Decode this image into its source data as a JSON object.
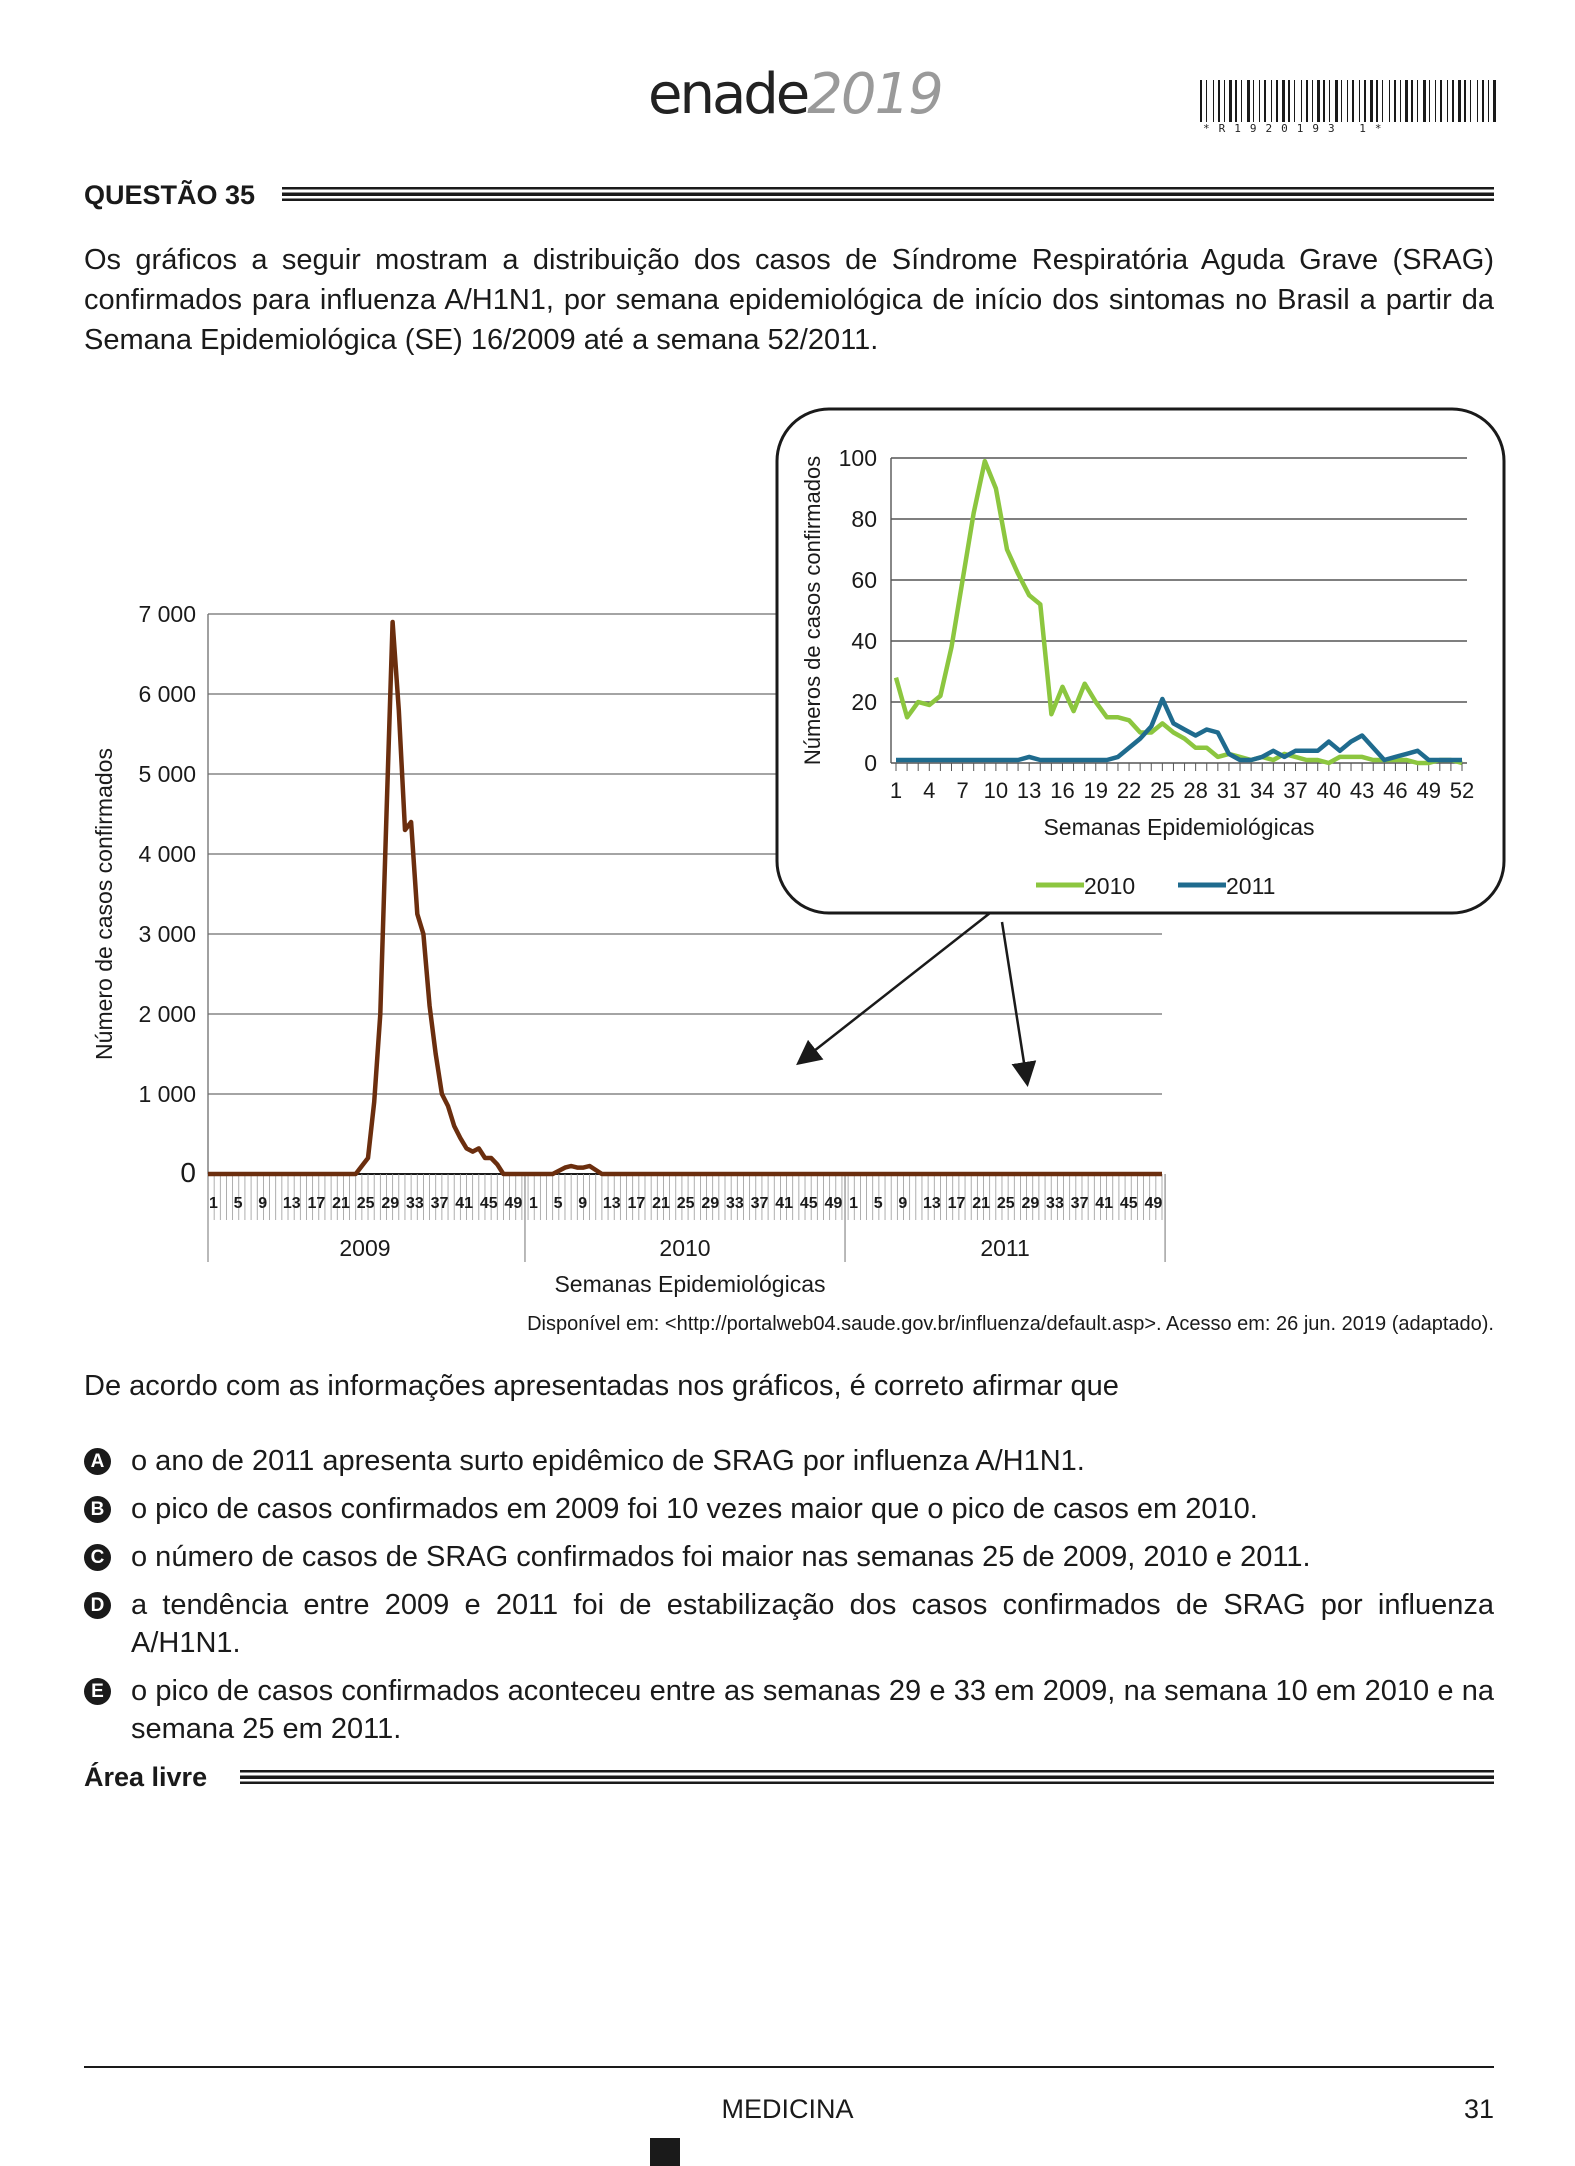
{
  "header": {
    "logo_word": "enade",
    "logo_year": "2019",
    "barcode_text": "*R1920193 1*"
  },
  "question": {
    "title": "QUESTÃO 35",
    "intro": "Os gráficos a seguir mostram a distribuição dos casos de Síndrome Respiratória Aguda Grave (SRAG) confirmados para influenza A/H1N1, por semana epidemiológica de início dos sintomas no Brasil a partir da Semana Epidemiológica (SE) 16/2009 até a semana 52/2011.",
    "source": "Disponível em: <http://portalweb04.saude.gov.br/influenza/default.asp>. Acesso em: 26 jun. 2019 (adaptado).",
    "prompt": "De acordo com as informações apresentadas nos gráficos, é correto afirmar que",
    "options": [
      {
        "letter": "A",
        "text": "o ano de 2011 apresenta surto epidêmico de SRAG por influenza A/H1N1."
      },
      {
        "letter": "B",
        "text": "o pico de casos confirmados em 2009 foi 10 vezes maior que o pico de casos em 2010."
      },
      {
        "letter": "C",
        "text": "o número de casos de SRAG confirmados foi maior nas semanas 25 de 2009, 2010 e 2011."
      },
      {
        "letter": "D",
        "text": "a tendência entre 2009 e 2011 foi de estabilização dos casos confirmados de SRAG por influenza A/H1N1."
      },
      {
        "letter": "E",
        "text": "o pico de casos confirmados aconteceu entre as semanas 29 e 33 em 2009, na semana 10 em 2010 e na semana 25 em 2011."
      }
    ],
    "free_area_label": "Área livre"
  },
  "footer": {
    "subject": "MEDICINA",
    "page": "31"
  },
  "chart_data": [
    {
      "type": "line",
      "title": "",
      "xlabel": "Semanas Epidemiológicas",
      "ylabel": "Número de casos confirmados",
      "ylim": [
        0,
        7000
      ],
      "yticks": [
        0,
        1000,
        2000,
        3000,
        4000,
        5000,
        6000,
        7000
      ],
      "ytick_labels": [
        "0",
        "1 000",
        "2 000",
        "3 000",
        "4 000",
        "5 000",
        "6 000",
        "7 000"
      ],
      "week_tick_labels": [
        "1",
        "5",
        "9",
        "13",
        "17",
        "21",
        "25",
        "29",
        "33",
        "37",
        "41",
        "45",
        "49"
      ],
      "year_labels": [
        "2009",
        "2010",
        "2011"
      ],
      "grid": true,
      "color": "#6b2e0e",
      "series": [
        {
          "x": [
            1,
            25,
            27,
            28,
            29,
            30,
            31,
            32,
            33,
            34,
            35,
            36,
            37,
            38,
            39,
            40,
            41,
            42,
            43,
            44,
            45,
            46,
            47,
            48,
            49,
            50,
            51,
            52,
            57,
            59,
            60,
            61,
            62,
            63,
            65,
            156
          ],
          "y": [
            0,
            0,
            200,
            900,
            2000,
            4500,
            6900,
            5800,
            4300,
            4400,
            3250,
            3000,
            2100,
            1500,
            1000,
            850,
            600,
            450,
            320,
            280,
            320,
            200,
            200,
            120,
            0,
            0,
            0,
            0,
            0,
            80,
            100,
            80,
            80,
            100,
            0,
            0
          ]
        }
      ]
    },
    {
      "type": "line",
      "title": "",
      "xlabel": "Semanas Epidemiológicas",
      "ylabel": "Números de casos confirmados",
      "ylim": [
        0,
        100
      ],
      "yticks": [
        0,
        20,
        40,
        60,
        80,
        100
      ],
      "x_tick_labels": [
        "1",
        "4",
        "7",
        "10",
        "13",
        "16",
        "19",
        "22",
        "25",
        "28",
        "31",
        "34",
        "37",
        "40",
        "43",
        "46",
        "49",
        "52"
      ],
      "grid": true,
      "legend": "bottom",
      "series": [
        {
          "name": "2010",
          "color": "#8cc63f",
          "x": [
            1,
            2,
            3,
            4,
            5,
            6,
            7,
            8,
            9,
            10,
            11,
            12,
            13,
            14,
            15,
            16,
            17,
            18,
            19,
            20,
            21,
            22,
            23,
            24,
            25,
            26,
            27,
            28,
            29,
            30,
            31,
            32,
            33,
            34,
            35,
            36,
            37,
            38,
            39,
            40,
            41,
            42,
            43,
            44,
            45,
            46,
            47,
            48,
            49,
            50,
            51,
            52
          ],
          "y": [
            28,
            15,
            20,
            19,
            22,
            38,
            60,
            82,
            99,
            90,
            70,
            62,
            55,
            52,
            16,
            25,
            17,
            26,
            20,
            15,
            15,
            14,
            10,
            10,
            13,
            10,
            8,
            5,
            5,
            2,
            3,
            2,
            1,
            2,
            1,
            3,
            2,
            1,
            1,
            0,
            2,
            2,
            2,
            1,
            1,
            1,
            1,
            0,
            0,
            1,
            1,
            0
          ]
        },
        {
          "name": "2011",
          "color": "#1f6b8e",
          "x": [
            1,
            2,
            3,
            4,
            5,
            6,
            7,
            8,
            9,
            10,
            11,
            12,
            13,
            14,
            15,
            16,
            17,
            18,
            19,
            20,
            21,
            22,
            23,
            24,
            25,
            26,
            27,
            28,
            29,
            30,
            31,
            32,
            33,
            34,
            35,
            36,
            37,
            38,
            39,
            40,
            41,
            42,
            43,
            44,
            45,
            46,
            47,
            48,
            49,
            50,
            51,
            52
          ],
          "y": [
            1,
            1,
            1,
            1,
            1,
            1,
            1,
            1,
            1,
            1,
            1,
            1,
            2,
            1,
            1,
            1,
            1,
            1,
            1,
            1,
            2,
            5,
            8,
            12,
            21,
            13,
            11,
            9,
            11,
            10,
            3,
            1,
            1,
            2,
            4,
            2,
            4,
            4,
            4,
            7,
            4,
            7,
            9,
            5,
            1,
            2,
            3,
            4,
            1,
            1,
            1,
            1
          ]
        }
      ]
    }
  ]
}
